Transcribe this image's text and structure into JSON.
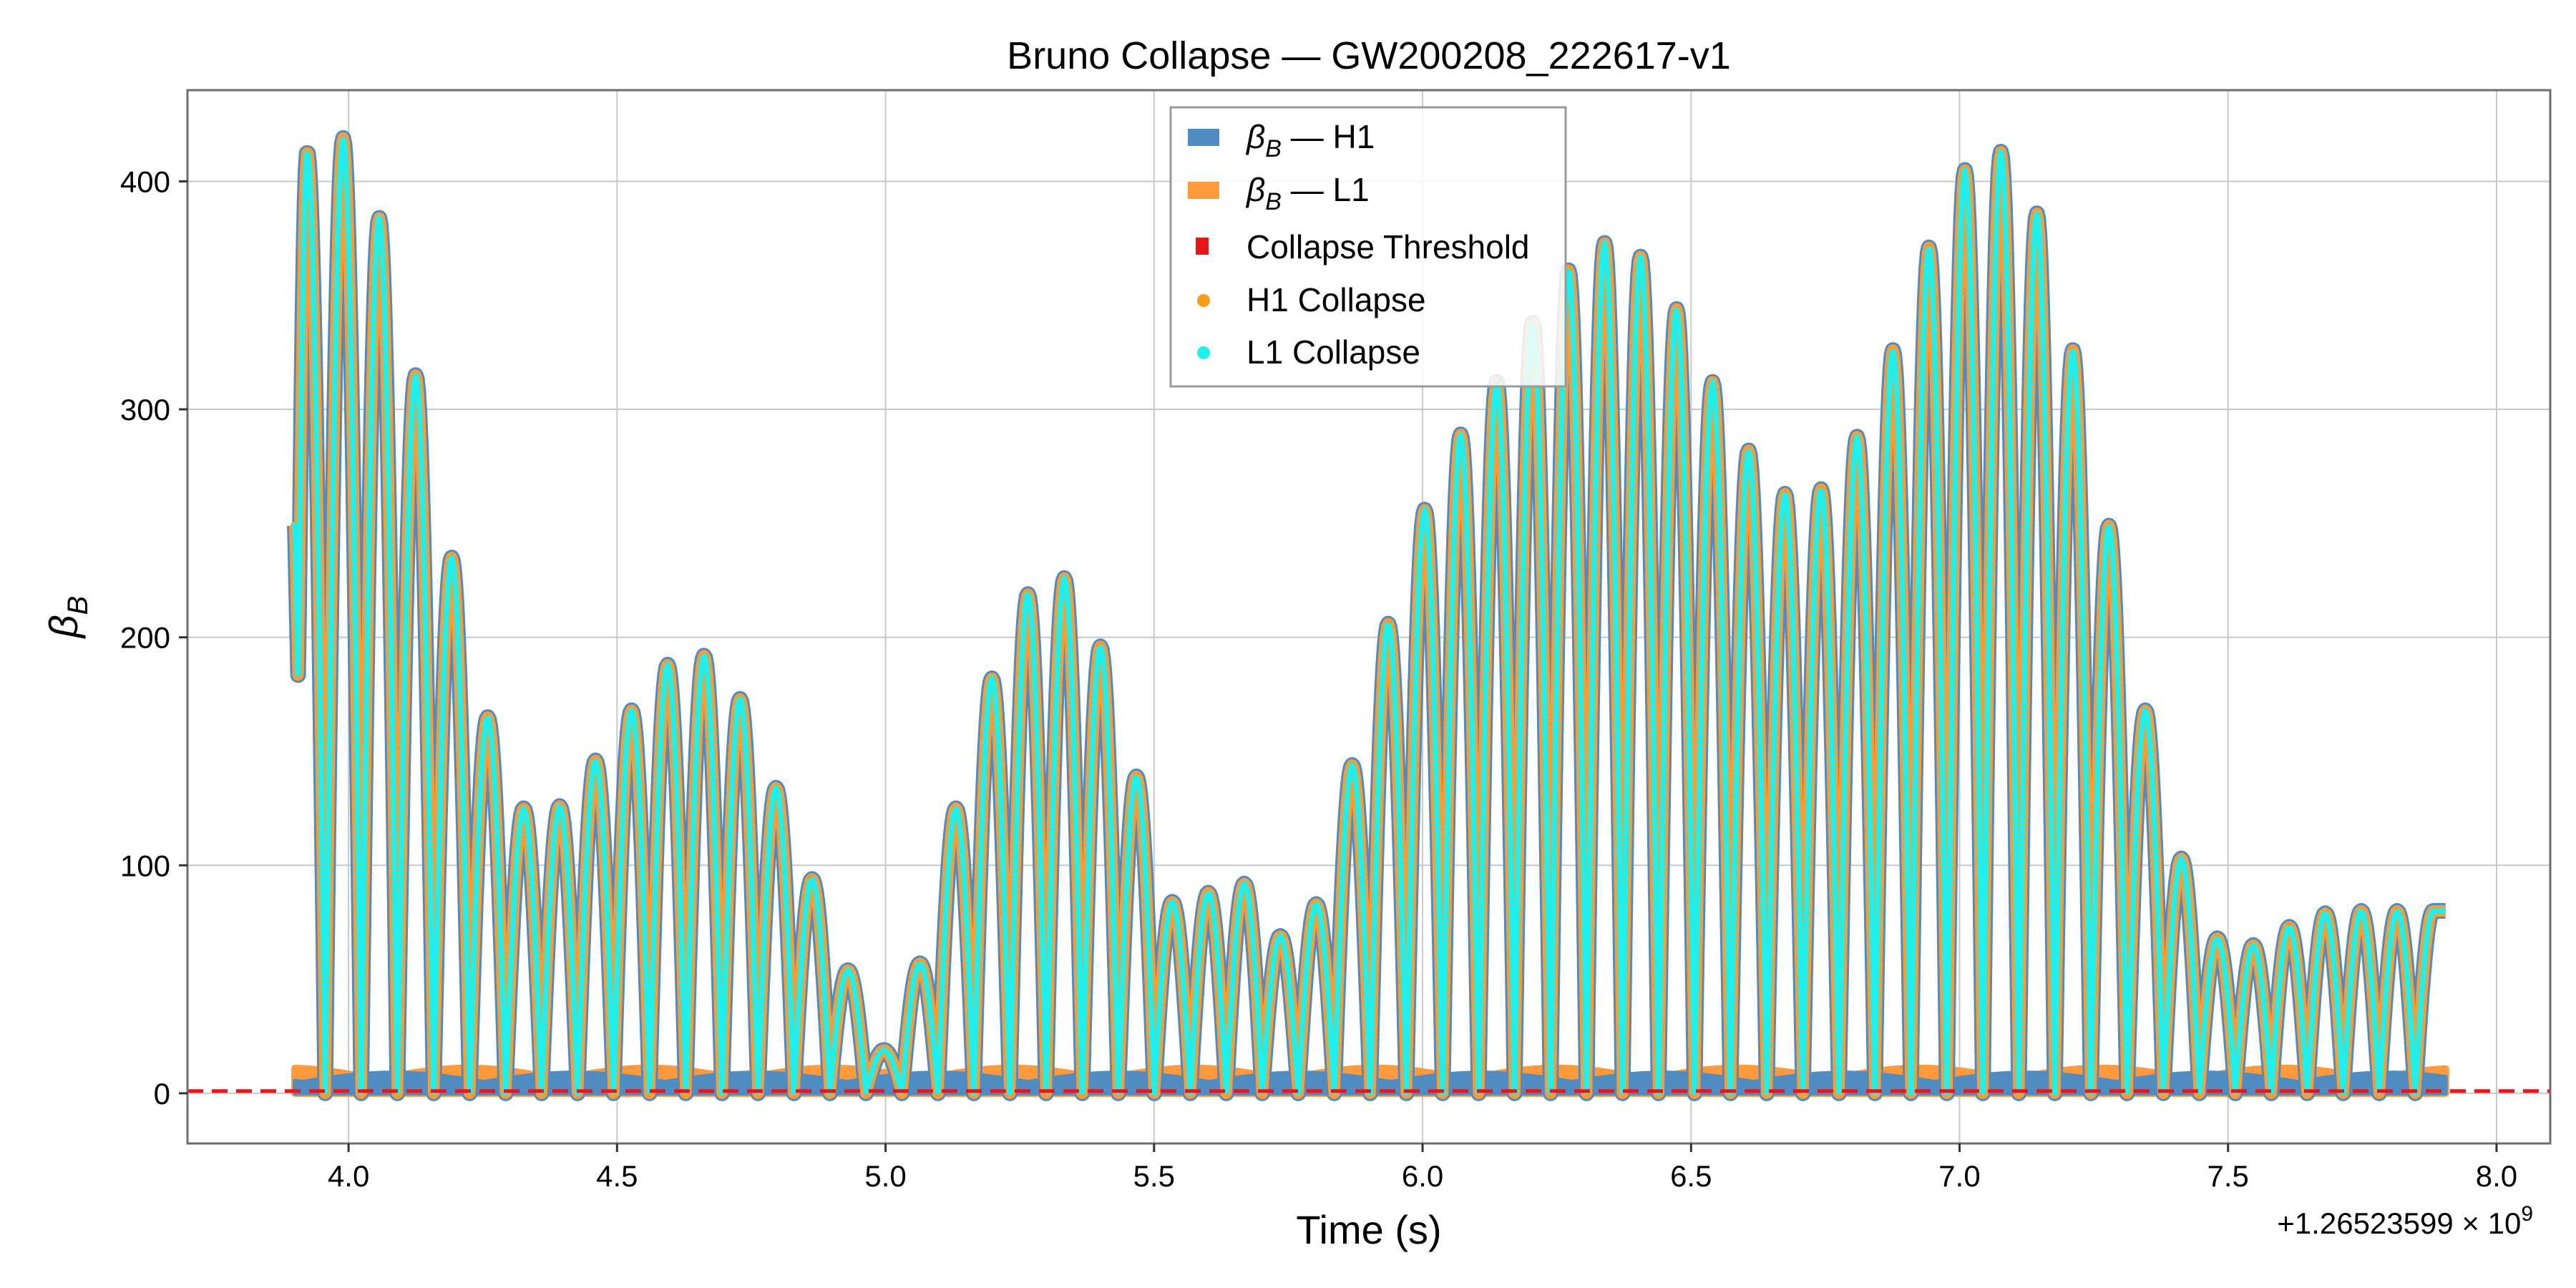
{
  "chart_data": {
    "type": "line",
    "title": "Bruno Collapse — GW200208_222617-v1",
    "xlabel": "Time (s)",
    "ylabel": "β_B",
    "x_offset_label": "+1.26523599 × 10",
    "x_offset_exponent": "9",
    "xlim": [
      3.7,
      8.1
    ],
    "ylim": [
      -22,
      440
    ],
    "x_ticks": [
      4.0,
      4.5,
      5.0,
      5.5,
      6.0,
      6.5,
      7.0,
      7.5,
      8.0
    ],
    "x_tick_labels": [
      "4.0",
      "4.5",
      "5.0",
      "5.5",
      "6.0",
      "6.5",
      "7.0",
      "7.5",
      "8.0"
    ],
    "y_ticks": [
      0,
      100,
      200,
      300,
      400
    ],
    "y_tick_labels": [
      "0",
      "100",
      "200",
      "300",
      "400"
    ],
    "grid": true,
    "legend_position": "top-center",
    "threshold": 1.0,
    "lobes": {
      "start": 3.9,
      "end": 7.905,
      "first_value": 249,
      "last_value": 80,
      "peak_times": [
        3.923,
        3.99,
        4.057,
        4.125,
        4.192,
        4.259,
        4.326,
        4.393,
        4.46,
        4.527,
        4.594,
        4.662,
        4.729,
        4.796,
        4.863,
        4.93,
        4.997,
        5.064,
        5.131,
        5.198,
        5.265,
        5.333,
        5.4,
        5.467,
        5.534,
        5.601,
        5.668,
        5.735,
        5.802,
        5.869,
        5.936,
        6.004,
        6.071,
        6.138,
        6.205,
        6.272,
        6.339,
        6.406,
        6.473,
        6.54,
        6.607,
        6.675,
        6.742,
        6.809,
        6.876,
        6.943,
        7.01,
        7.077,
        7.144,
        7.211,
        7.278,
        7.346,
        7.413,
        7.48,
        7.547,
        7.614,
        7.681,
        7.748,
        7.815,
        7.882
      ],
      "peak_values": [
        413,
        419,
        384,
        315,
        235,
        165,
        125,
        126,
        146,
        168,
        188,
        192,
        173,
        134,
        94,
        54,
        19,
        57,
        125,
        182,
        219,
        226,
        196,
        139,
        84,
        88,
        92,
        69,
        83,
        144,
        206,
        256,
        289,
        312,
        338,
        361,
        373,
        367,
        344,
        312,
        282,
        263,
        265,
        288,
        326,
        371,
        405,
        413,
        386,
        326,
        249,
        168,
        103,
        68,
        65,
        73,
        79,
        80,
        80,
        80
      ]
    },
    "series": [
      {
        "name": "β_B — H1",
        "color": "#4f8cc1",
        "style": "filled band"
      },
      {
        "name": "β_B — L1",
        "color": "#ff9a3c",
        "style": "filled band"
      },
      {
        "name": "Collapse Threshold",
        "color": "#e8161b",
        "style": "dashed line",
        "y": 1.0
      },
      {
        "name": "H1 Collapse",
        "color": "#ff9c1c",
        "style": "markers"
      },
      {
        "name": "L1 Collapse",
        "color": "#1ff0ee",
        "style": "markers"
      }
    ]
  },
  "legend": {
    "h1_band": {
      "symbol": "β",
      "sub": "B",
      "suffix": " — H1"
    },
    "l1_band": {
      "symbol": "β",
      "sub": "B",
      "suffix": " — L1"
    },
    "threshold": "Collapse Threshold",
    "h1_collapse": "H1 Collapse",
    "l1_collapse": "L1 Collapse"
  },
  "y_axis_symbol": {
    "symbol": "β",
    "sub": "B"
  }
}
